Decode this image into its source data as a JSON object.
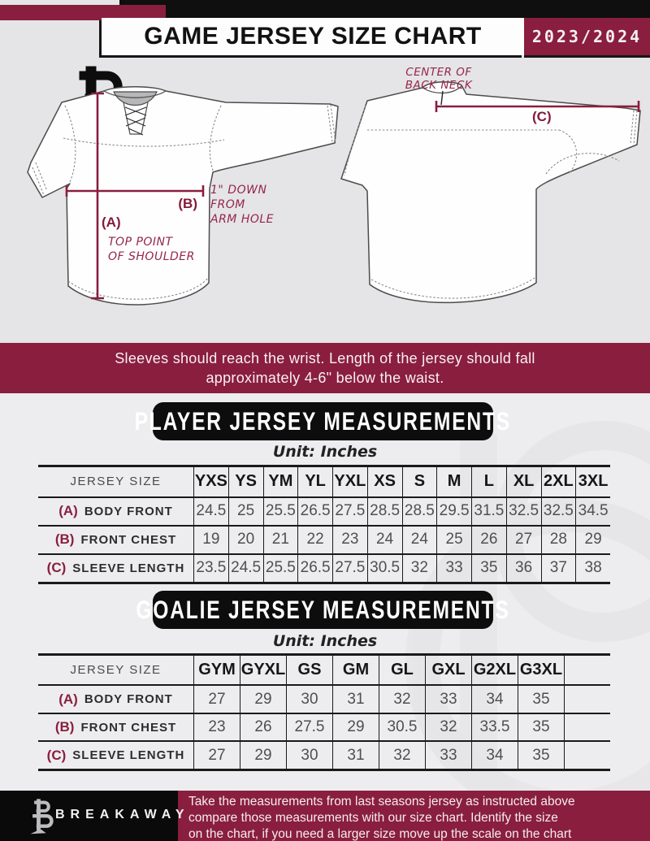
{
  "header": {
    "title": "GAME JERSEY SIZE CHART",
    "season": "2023/2024"
  },
  "diagram": {
    "front": {
      "a_label": "(A)",
      "a_desc1": "TOP POINT",
      "a_desc2": "OF SHOULDER",
      "b_label": "(B)",
      "b_desc1": "1\" DOWN",
      "b_desc2": "FROM",
      "b_desc3": "ARM HOLE"
    },
    "back": {
      "c_label": "(C)",
      "neck1": "CENTER OF",
      "neck2": "BACK NECK"
    }
  },
  "banner": {
    "line1": "Sleeves should reach the wrist. Length of the jersey should fall",
    "line2": "approximately 4-6\" below the waist."
  },
  "player_section": {
    "title": "PLAYER JERSEY MEASUREMENTS",
    "unit": "Unit: Inches"
  },
  "goalie_section": {
    "title": "GOALIE JERSEY MEASUREMENTS",
    "unit": "Unit: Inches"
  },
  "chart_data": [
    {
      "type": "table",
      "title": "PLAYER JERSEY MEASUREMENTS",
      "unit": "Inches",
      "header": [
        "JERSEY SIZE",
        "YXS",
        "YS",
        "YM",
        "YL",
        "YXL",
        "XS",
        "S",
        "M",
        "L",
        "XL",
        "2XL",
        "3XL"
      ],
      "rows": [
        {
          "key": "(A)",
          "label": "BODY FRONT",
          "values": [
            24.5,
            25,
            25.5,
            26.5,
            27.5,
            28.5,
            28.5,
            29.5,
            31.5,
            32.5,
            32.5,
            34.5
          ]
        },
        {
          "key": "(B)",
          "label": "FRONT CHEST",
          "values": [
            19,
            20,
            21,
            22,
            23,
            24,
            24,
            25,
            26,
            27,
            28,
            29
          ]
        },
        {
          "key": "(C)",
          "label": "SLEEVE LENGTH",
          "values": [
            23.5,
            24.5,
            25.5,
            26.5,
            27.5,
            30.5,
            32,
            33,
            35,
            36,
            37,
            38
          ]
        }
      ]
    },
    {
      "type": "table",
      "title": "GOALIE JERSEY MEASUREMENTS",
      "unit": "Inches",
      "header": [
        "JERSEY SIZE",
        "GYM",
        "GYXL",
        "GS",
        "GM",
        "GL",
        "GXL",
        "G2XL",
        "G3XL",
        ""
      ],
      "rows": [
        {
          "key": "(A)",
          "label": "BODY FRONT",
          "values": [
            27,
            29,
            30,
            31,
            32,
            33,
            34,
            35,
            ""
          ]
        },
        {
          "key": "(B)",
          "label": "FRONT CHEST",
          "values": [
            23,
            26,
            27.5,
            29,
            30.5,
            32,
            33.5,
            35,
            ""
          ]
        },
        {
          "key": "(C)",
          "label": "SLEEVE LENGTH",
          "values": [
            27,
            29,
            30,
            31,
            32,
            33,
            34,
            35,
            ""
          ]
        }
      ]
    }
  ],
  "footer": {
    "brand": "BREAKAWAY",
    "note1": "Take the measurements from last seasons jersey as instructed above",
    "note2": "compare those measurements  with our size chart. Identify the size",
    "note3": "on the chart, if you need a larger size move up the scale on the chart"
  },
  "colors": {
    "maroon": "#8A1E3E",
    "black": "#0F0F10",
    "bg_upper": "#E5E4E6",
    "bg_lower": "#EDEDEF"
  }
}
